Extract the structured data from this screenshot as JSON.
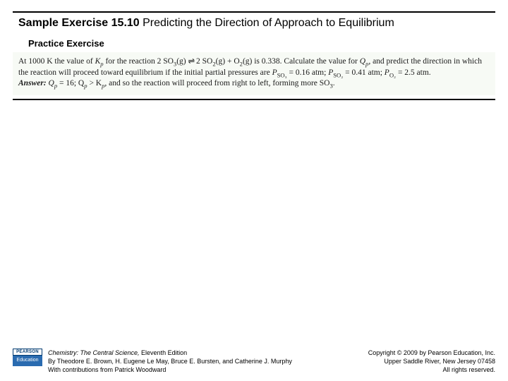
{
  "title": {
    "bold_prefix": "Sample Exercise 15.10",
    "rest": " Predicting the Direction of Approach to Equilibrium"
  },
  "subtitle": "Practice Exercise",
  "problem": {
    "line1_a": "At 1000 K the value of ",
    "kp": "K",
    "kp_sub": "p",
    "line1_b": " for the reaction 2 SO",
    "so3_sub": "3",
    "line1_c": "(g) ",
    "arrow": "⇌",
    "line1_d": " 2 SO",
    "so2_sub": "2",
    "line1_e": "(g) + O",
    "o2_sub": "2",
    "line1_f": "(g) is 0.338. Calculate the value for ",
    "qp": "Q",
    "qp_sub": "p",
    "line1_g": ", and predict the direction in which the reaction will proceed toward equilibrium if the initial partial pressures are ",
    "p_so3": "P",
    "p_so3_sub": "SO₃",
    "eq1": " = 0.16 atm; ",
    "p_so2": "P",
    "p_so2_sub": "SO₂",
    "eq2": " = 0.41 atm; ",
    "p_o2": "P",
    "p_o2_sub": "O₂",
    "eq3": " = 2.5 atm.",
    "answer_label": "Answer:",
    "answer_a": " Q",
    "answer_a_sub": "p",
    "answer_b": " = 16; Q",
    "answer_b_sub": "p",
    "answer_c": " > K",
    "answer_c_sub": "p",
    "answer_d": ", and so the reaction will proceed from right to left, forming more SO",
    "answer_d_sub": "3",
    "answer_e": "."
  },
  "footer": {
    "logo_top": "PEARSON",
    "logo_bottom": "Education",
    "book_title": "Chemistry: The Central Science, ",
    "edition": "Eleventh Edition",
    "authors": "By Theodore E. Brown, H. Eugene Le May, Bruce E. Bursten, and Catherine J. Murphy",
    "contrib": "With contributions from Patrick Woodward",
    "copyright1": "Copyright © 2009 by Pearson Education, Inc.",
    "copyright2": "Upper Saddle River, New Jersey 07458",
    "copyright3": "All rights reserved."
  },
  "colors": {
    "rule": "#000000",
    "problem_bg": "#f7faf5",
    "logo_blue": "#2a6bb0",
    "logo_dark": "#003a70"
  }
}
